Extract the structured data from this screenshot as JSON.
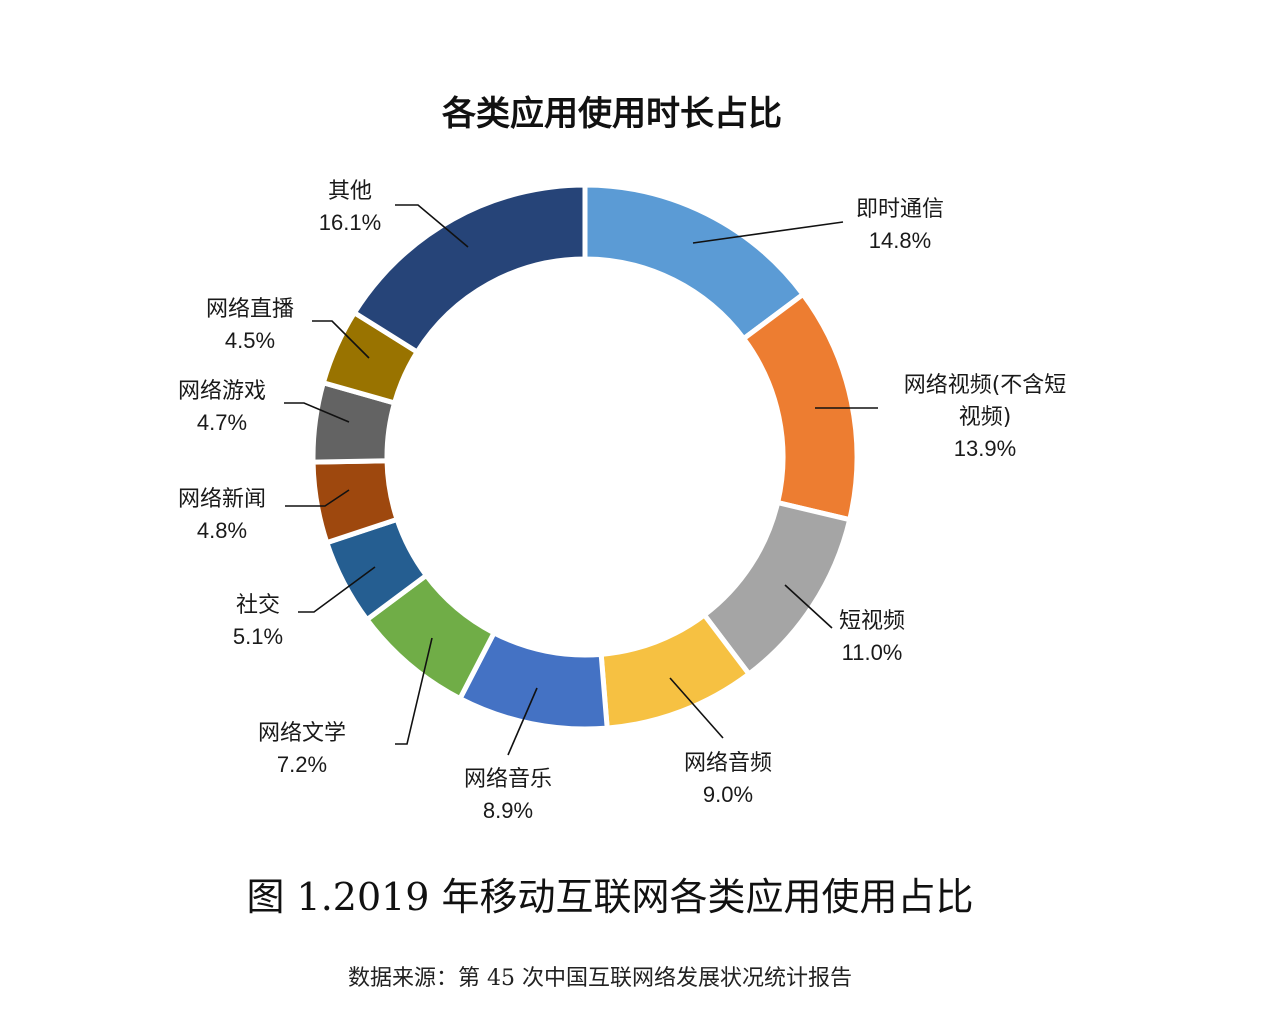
{
  "chart_data": {
    "type": "pie",
    "title": "各类应用使用时长占比",
    "categories": [
      "即时通信",
      "网络视频(不含短视频)",
      "短视频",
      "网络音频",
      "网络音乐",
      "网络文学",
      "社交",
      "网络新闻",
      "网络游戏",
      "网络直播",
      "其他"
    ],
    "label_lines": [
      [
        "即时通信"
      ],
      [
        "网络视频(不含短",
        "视频)"
      ],
      [
        "短视频"
      ],
      [
        "网络音频"
      ],
      [
        "网络音乐"
      ],
      [
        "网络文学"
      ],
      [
        "社交"
      ],
      [
        "网络新闻"
      ],
      [
        "网络游戏"
      ],
      [
        "网络直播"
      ],
      [
        "其他"
      ]
    ],
    "values": [
      14.8,
      13.9,
      11.0,
      9.0,
      8.9,
      7.2,
      5.1,
      4.8,
      4.7,
      4.5,
      16.1
    ],
    "value_labels": [
      "14.8%",
      "13.9%",
      "11.0%",
      "9.0%",
      "8.9%",
      "7.2%",
      "5.1%",
      "4.8%",
      "4.7%",
      "4.5%",
      "16.1%"
    ],
    "colors": [
      "#5b9bd5",
      "#ed7d31",
      "#a5a5a5",
      "#f6c142",
      "#4472c4",
      "#70ad47",
      "#255e91",
      "#9e480e",
      "#636363",
      "#997300",
      "#264478"
    ],
    "style": "donut"
  },
  "caption": "图 1.2019 年移动互联网各类应用使用占比",
  "source": "数据来源：第 45 次中国互联网络发展状况统计报告"
}
